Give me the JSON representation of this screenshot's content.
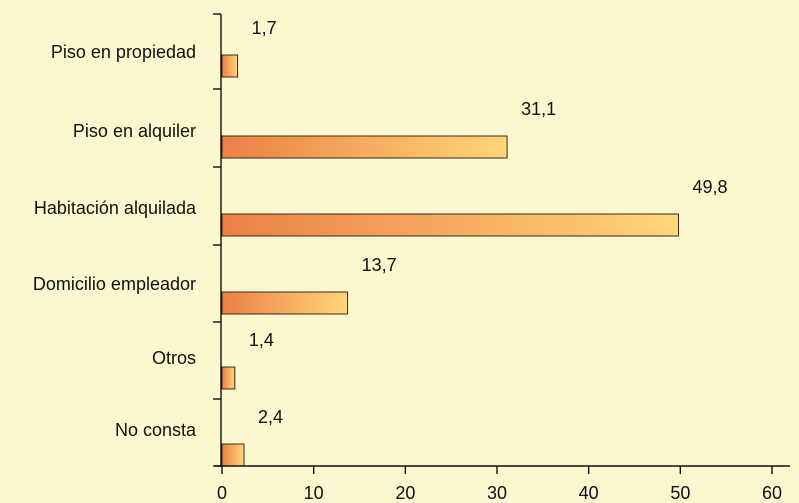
{
  "chart_data": {
    "type": "bar",
    "orientation": "horizontal",
    "categories": [
      "Piso en propiedad",
      "Piso en alquiler",
      "Habitación alquilada",
      "Domicilio empleador",
      "Otros",
      "No consta"
    ],
    "values": [
      1.7,
      31.1,
      49.8,
      13.7,
      1.4,
      2.4
    ],
    "value_labels": [
      "1,7",
      "31,1",
      "49,8",
      "13,7",
      "1,4",
      "2,4"
    ],
    "xlim": [
      0,
      60
    ],
    "xticks": [
      0,
      10,
      20,
      30,
      40,
      50,
      60
    ],
    "xtick_labels": [
      "0",
      "10",
      "20",
      "30",
      "40",
      "50",
      "60"
    ],
    "grid": false,
    "title": "",
    "xlabel": "",
    "ylabel": ""
  },
  "colors": {
    "background": "#fbf7cf",
    "bar_start": "#ec8045",
    "bar_end": "#ffd67a",
    "bar_stroke": "#3a2a1a",
    "axis": "#111111"
  }
}
